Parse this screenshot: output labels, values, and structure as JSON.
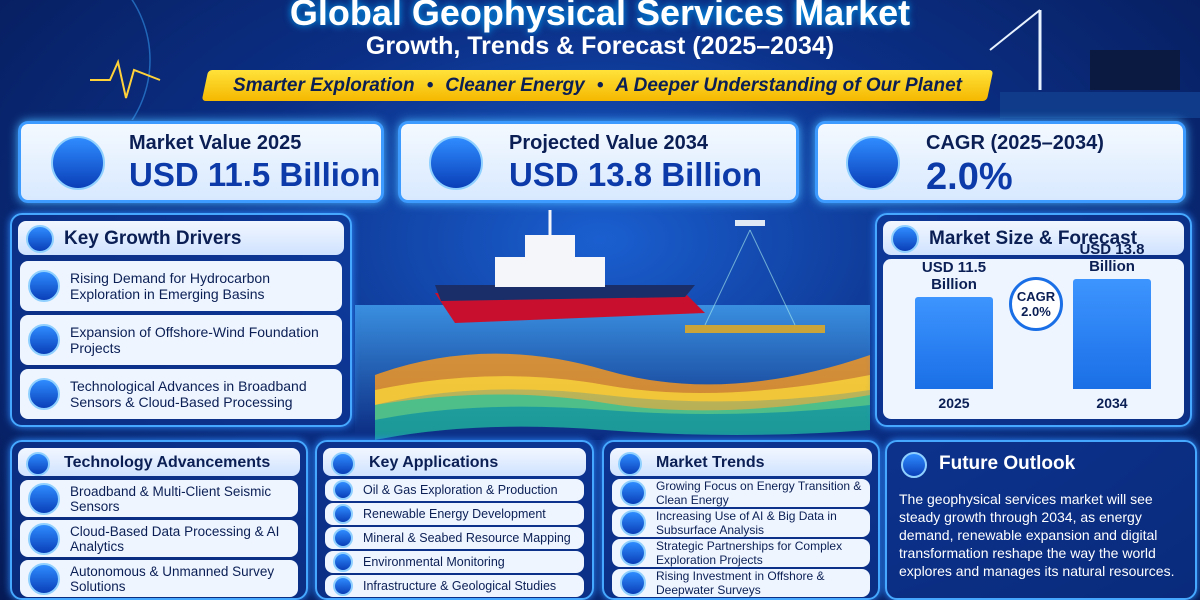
{
  "header": {
    "title": "Global Geophysical Services Market",
    "subtitle": "Growth, Trends & Forecast (2025–2034)",
    "taglines": [
      "Smarter Exploration",
      "Cleaner Energy",
      "A Deeper Understanding of Our Planet"
    ]
  },
  "stats": [
    {
      "label": "Market Value 2025",
      "value": "USD 11.5 Billion"
    },
    {
      "label": "Projected Value 2034",
      "value": "USD 13.8 Billion"
    },
    {
      "label": "CAGR (2025–2034)",
      "value": "2.0%"
    }
  ],
  "drivers": {
    "title": "Key Growth Drivers",
    "items": [
      "Rising Demand for Hydrocarbon Exploration in Emerging Basins",
      "Expansion of Offshore-Wind Foundation Projects",
      "Technological Advances in Broadband Sensors & Cloud-Based Processing"
    ]
  },
  "chart_data": {
    "type": "bar",
    "title": "Market Size & Forecast",
    "categories": [
      "2025",
      "2034"
    ],
    "values": [
      11.5,
      13.8
    ],
    "value_labels": [
      "USD 11.5 Billion",
      "USD 13.8 Billion"
    ],
    "annotation": "CAGR 2.0%",
    "color": "#1a6fe6"
  },
  "technology": {
    "title": "Technology Advancements",
    "items": [
      "Broadband & Multi-Client Seismic Sensors",
      "Cloud-Based Data Processing & AI Analytics",
      "Autonomous & Unmanned Survey Solutions"
    ]
  },
  "applications": {
    "title": "Key Applications",
    "items": [
      "Oil & Gas Exploration & Production",
      "Renewable Energy Development",
      "Mineral & Seabed Resource Mapping",
      "Environmental Monitoring",
      "Infrastructure & Geological Studies"
    ]
  },
  "trends": {
    "title": "Market Trends",
    "items": [
      "Growing Focus on Energy Transition & Clean Energy",
      "Increasing Use of AI & Big Data in Subsurface Analysis",
      "Strategic Partnerships for Complex Exploration Projects",
      "Rising Investment in Offshore & Deepwater Surveys"
    ]
  },
  "outlook": {
    "title": "Future Outlook",
    "text": "The geophysical services market will see steady growth through 2034, as energy demand, renewable expansion and digital transformation reshape the way the world explores and manages its natural resources."
  }
}
